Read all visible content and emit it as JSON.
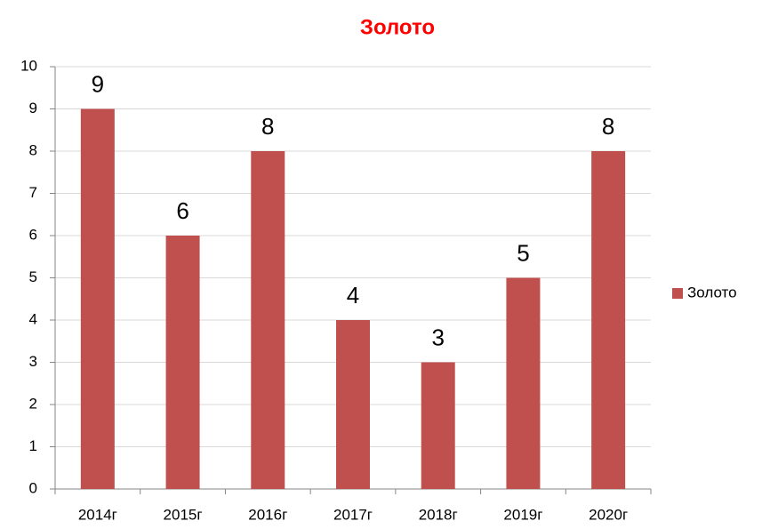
{
  "chart_data": {
    "type": "bar",
    "title": "Золото",
    "categories": [
      "2014г",
      "2015г",
      "2016г",
      "2017г",
      "2018г",
      "2019г",
      "2020г"
    ],
    "series": [
      {
        "name": "Золото",
        "color": "#c0504d",
        "values": [
          9,
          6,
          8,
          4,
          3,
          5,
          8
        ]
      }
    ],
    "ylim": [
      0,
      10
    ],
    "yticks": [
      0,
      1,
      2,
      3,
      4,
      5,
      6,
      7,
      8,
      9,
      10
    ],
    "grid": true,
    "legend": "right",
    "title_color": "#ff0000"
  }
}
